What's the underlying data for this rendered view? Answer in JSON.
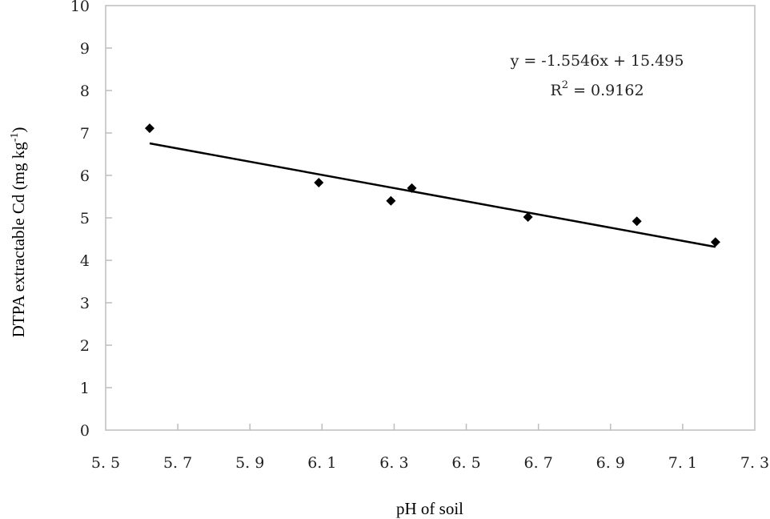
{
  "chart_data": {
    "type": "scatter",
    "title": "",
    "xlabel": "pH of soil",
    "ylabel": "DTPA extractable Cd (mg kg",
    "ylabel_sup": "-1",
    "ylabel_end": ")",
    "xlim": [
      5.5,
      7.3
    ],
    "ylim": [
      0,
      10
    ],
    "xticks": [
      "5.5",
      "5.7",
      "5.9",
      "6.1",
      "6.3",
      "6.5",
      "6.7",
      "6.9",
      "7.1",
      "7.3"
    ],
    "yticks": [
      "0",
      "1",
      "2",
      "3",
      "4",
      "5",
      "6",
      "7",
      "8",
      "9",
      "10"
    ],
    "grid": false,
    "series": [
      {
        "name": "Cd",
        "marker": "diamond",
        "color": "#000000",
        "x": [
          5.622,
          6.091,
          6.291,
          6.349,
          6.671,
          6.973,
          7.191
        ],
        "y": [
          7.11,
          5.83,
          5.4,
          5.7,
          5.02,
          4.92,
          4.43
        ]
      }
    ],
    "trendline": {
      "slope": -1.5546,
      "intercept": 15.495,
      "x_range": [
        5.622,
        7.191
      ]
    },
    "annotations": {
      "equation": "y = -1.5546x + 15.495",
      "r2_label": "R",
      "r2_sup": "2",
      "r2_value": " = 0.9162"
    }
  }
}
